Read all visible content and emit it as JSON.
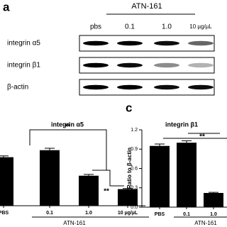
{
  "figure": {
    "panel_a": "a",
    "panel_c": "c",
    "blot": {
      "treatment": "ATN-161",
      "lanes": [
        "pbs",
        "0.1",
        "1.0",
        "10 µg/µL"
      ],
      "rows": [
        "integrin α5",
        "integrin β1",
        "β-actin"
      ]
    }
  },
  "chart_data": [
    {
      "type": "bar",
      "title": "integrin α5",
      "categories": [
        "PBS",
        "0.1",
        "1.0",
        "10 µg/µL"
      ],
      "values": [
        0.76,
        0.87,
        0.47,
        0.26
      ],
      "errors": [
        0.02,
        0.03,
        0.02,
        0.01
      ],
      "color": "#000000",
      "ylim": [
        0,
        1.2
      ],
      "group_label": "ATN-161",
      "annotations": [
        "**",
        "**"
      ]
    },
    {
      "type": "bar",
      "title": "integrin β1",
      "ylabel": "Ratio to β-actin",
      "categories": [
        "PBS",
        "0.1",
        "1.0"
      ],
      "values": [
        0.95,
        1.0,
        0.22
      ],
      "errors": [
        0.03,
        0.03,
        0.01
      ],
      "color": "#000000",
      "ylim": [
        0,
        1.2
      ],
      "yticks": [
        {
          "value": 0,
          "label": "0.0"
        },
        0.3,
        0.6,
        0.9,
        1.2
      ],
      "group_label": "ATN-161",
      "annotations": [
        "**"
      ]
    }
  ]
}
